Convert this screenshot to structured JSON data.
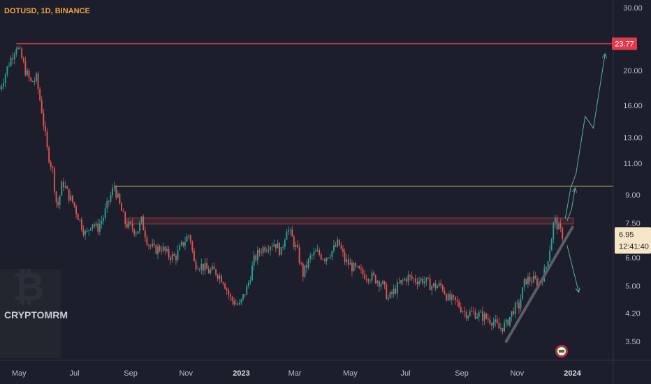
{
  "header": {
    "symbol": "DOTUSD, 1D, BINANCE"
  },
  "watermark": {
    "brand": "CRYPTOMRM"
  },
  "colors": {
    "background": "#1c1f2b",
    "up": "#26a69a",
    "down": "#ef5350",
    "resistance": "#e23a4a",
    "level_line": "#c8c46a",
    "zone": "#5a2a34",
    "projection": "#5fa8a6",
    "trendline": "#5a5d66",
    "price_tag": "#f5e6c8"
  },
  "chart_data": {
    "type": "line",
    "symbol": "DOTUSD",
    "interval": "1D",
    "exchange": "BINANCE",
    "y_scale": "log",
    "y_range": [
      3.1,
      31.5
    ],
    "x_range": [
      "2022-04-10",
      "2024-02-15"
    ],
    "y_ticks": [
      "30.00",
      "23.77",
      "20.00",
      "16.00",
      "13.00",
      "11.00",
      "9.00",
      "7.50",
      "6.00",
      "5.00",
      "4.20",
      "3.50"
    ],
    "x_ticks": [
      {
        "label": "May",
        "date": "2022-05-01",
        "bold": false
      },
      {
        "label": "Jul",
        "date": "2022-07-01",
        "bold": false
      },
      {
        "label": "Sep",
        "date": "2022-09-01",
        "bold": false
      },
      {
        "label": "Nov",
        "date": "2022-11-01",
        "bold": false
      },
      {
        "label": "2023",
        "date": "2023-01-01",
        "bold": true
      },
      {
        "label": "Mar",
        "date": "2023-03-01",
        "bold": false
      },
      {
        "label": "May",
        "date": "2023-05-01",
        "bold": false
      },
      {
        "label": "Jul",
        "date": "2023-07-01",
        "bold": false
      },
      {
        "label": "Sep",
        "date": "2023-09-01",
        "bold": false
      },
      {
        "label": "Nov",
        "date": "2023-11-01",
        "bold": false
      },
      {
        "label": "2024",
        "date": "2024-01-01",
        "bold": true
      }
    ],
    "price_path": [
      [
        "2022-04-10",
        17.8
      ],
      [
        "2022-04-20",
        21.0
      ],
      [
        "2022-04-28",
        23.5
      ],
      [
        "2022-05-03",
        22.0
      ],
      [
        "2022-05-08",
        20.0
      ],
      [
        "2022-05-14",
        18.5
      ],
      [
        "2022-05-20",
        19.0
      ],
      [
        "2022-05-26",
        15.5
      ],
      [
        "2022-06-01",
        12.0
      ],
      [
        "2022-06-07",
        10.5
      ],
      [
        "2022-06-12",
        8.2
      ],
      [
        "2022-06-18",
        9.8
      ],
      [
        "2022-06-24",
        9.0
      ],
      [
        "2022-06-30",
        8.5
      ],
      [
        "2022-07-07",
        7.6
      ],
      [
        "2022-07-14",
        6.9
      ],
      [
        "2022-07-20",
        7.6
      ],
      [
        "2022-07-26",
        7.2
      ],
      [
        "2022-08-02",
        7.8
      ],
      [
        "2022-08-09",
        8.8
      ],
      [
        "2022-08-14",
        9.5
      ],
      [
        "2022-08-20",
        8.4
      ],
      [
        "2022-08-26",
        7.5
      ],
      [
        "2022-09-01",
        7.3
      ],
      [
        "2022-09-08",
        7.1
      ],
      [
        "2022-09-13",
        7.6
      ],
      [
        "2022-09-20",
        6.6
      ],
      [
        "2022-09-27",
        6.3
      ],
      [
        "2022-10-05",
        6.4
      ],
      [
        "2022-10-12",
        6.1
      ],
      [
        "2022-10-20",
        6.0
      ],
      [
        "2022-10-29",
        6.6
      ],
      [
        "2022-11-05",
        7.0
      ],
      [
        "2022-11-10",
        5.8
      ],
      [
        "2022-11-18",
        5.7
      ],
      [
        "2022-11-26",
        5.5
      ],
      [
        "2022-12-03",
        5.5
      ],
      [
        "2022-12-12",
        5.2
      ],
      [
        "2022-12-20",
        4.6
      ],
      [
        "2022-12-30",
        4.4
      ],
      [
        "2023-01-08",
        5.0
      ],
      [
        "2023-01-15",
        5.9
      ],
      [
        "2023-01-22",
        6.3
      ],
      [
        "2023-01-30",
        6.5
      ],
      [
        "2023-02-07",
        6.6
      ],
      [
        "2023-02-14",
        6.2
      ],
      [
        "2023-02-20",
        7.3
      ],
      [
        "2023-02-26",
        6.8
      ],
      [
        "2023-03-04",
        6.2
      ],
      [
        "2023-03-10",
        5.4
      ],
      [
        "2023-03-18",
        6.0
      ],
      [
        "2023-03-25",
        6.2
      ],
      [
        "2023-04-03",
        6.0
      ],
      [
        "2023-04-12",
        6.3
      ],
      [
        "2023-04-18",
        6.6
      ],
      [
        "2023-04-25",
        5.9
      ],
      [
        "2023-05-05",
        5.6
      ],
      [
        "2023-05-15",
        5.4
      ],
      [
        "2023-05-25",
        5.3
      ],
      [
        "2023-06-05",
        5.1
      ],
      [
        "2023-06-12",
        4.6
      ],
      [
        "2023-06-20",
        4.9
      ],
      [
        "2023-06-26",
        5.1
      ],
      [
        "2023-07-03",
        5.3
      ],
      [
        "2023-07-12",
        5.2
      ],
      [
        "2023-07-20",
        5.2
      ],
      [
        "2023-07-30",
        5.0
      ],
      [
        "2023-08-10",
        5.0
      ],
      [
        "2023-08-17",
        4.6
      ],
      [
        "2023-08-26",
        4.5
      ],
      [
        "2023-09-05",
        4.2
      ],
      [
        "2023-09-15",
        4.2
      ],
      [
        "2023-09-25",
        4.1
      ],
      [
        "2023-10-05",
        4.0
      ],
      [
        "2023-10-12",
        3.8
      ],
      [
        "2023-10-20",
        3.9
      ],
      [
        "2023-10-28",
        4.3
      ],
      [
        "2023-11-03",
        4.4
      ],
      [
        "2023-11-10",
        5.2
      ],
      [
        "2023-11-18",
        5.2
      ],
      [
        "2023-11-25",
        5.1
      ],
      [
        "2023-12-02",
        5.5
      ],
      [
        "2023-12-08",
        6.6
      ],
      [
        "2023-12-12",
        7.7
      ],
      [
        "2023-12-16",
        7.3
      ],
      [
        "2023-12-21",
        6.95
      ]
    ],
    "levels": {
      "resistance_high": 23.77,
      "horizontal_line": 9.5,
      "supply_zone": [
        7.45,
        7.75
      ]
    },
    "trendline": [
      [
        "2023-10-20",
        3.5
      ],
      [
        "2024-01-01",
        7.3
      ]
    ],
    "projection_up": [
      [
        "2023-12-24",
        7.7
      ],
      [
        "2023-12-30",
        9.4
      ],
      [
        "2024-01-05",
        10.3
      ],
      [
        "2024-01-15",
        14.9
      ],
      [
        "2024-01-24",
        13.8
      ],
      [
        "2024-02-06",
        22.3
      ]
    ],
    "projection_down": [
      [
        "2023-12-26",
        6.5
      ],
      [
        "2024-01-08",
        4.8
      ]
    ],
    "current_price": "6.95",
    "countdown": "12:41:40",
    "resistance_label": "23.77"
  }
}
